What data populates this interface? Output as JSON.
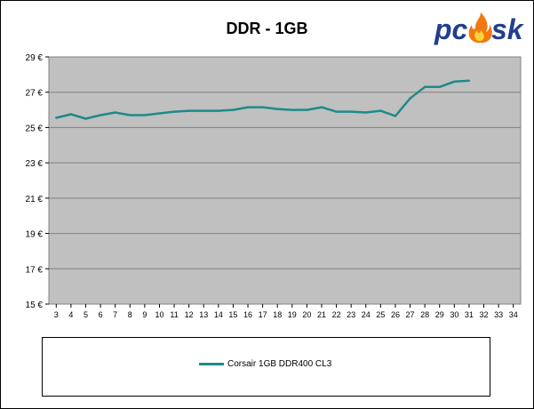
{
  "chart_data": {
    "type": "line",
    "title": "DDR - 1GB",
    "xlabel": "",
    "ylabel": "",
    "x_ticks": [
      3,
      4,
      5,
      6,
      7,
      8,
      9,
      10,
      11,
      12,
      13,
      14,
      15,
      16,
      17,
      18,
      19,
      20,
      21,
      22,
      23,
      24,
      25,
      26,
      27,
      28,
      29,
      30,
      31,
      32,
      33,
      34
    ],
    "y_ticks": [
      15,
      17,
      19,
      21,
      23,
      25,
      27,
      29
    ],
    "y_tick_suffix": " €",
    "xlim": [
      2.5,
      34.5
    ],
    "ylim": [
      15,
      29
    ],
    "grid": "horizontal",
    "legend": "bottom",
    "series": [
      {
        "name": "Corsair 1GB DDR400 CL3",
        "color": "#1e8a8a",
        "x": [
          3,
          4,
          5,
          6,
          7,
          8,
          9,
          10,
          11,
          12,
          13,
          14,
          15,
          16,
          17,
          18,
          19,
          20,
          21,
          22,
          23,
          24,
          25,
          26,
          27,
          28,
          29,
          30,
          31
        ],
        "values": [
          25.55,
          25.75,
          25.5,
          25.7,
          25.85,
          25.7,
          25.7,
          25.8,
          25.9,
          25.95,
          25.95,
          25.95,
          26.0,
          26.15,
          26.15,
          26.05,
          26.0,
          26.0,
          26.15,
          25.9,
          25.9,
          25.85,
          25.95,
          25.65,
          26.65,
          27.3,
          27.3,
          27.6,
          27.65
        ]
      }
    ]
  },
  "logo": {
    "text_left": "pc",
    "text_right": "sk",
    "name": "pclab-flame-logo"
  }
}
